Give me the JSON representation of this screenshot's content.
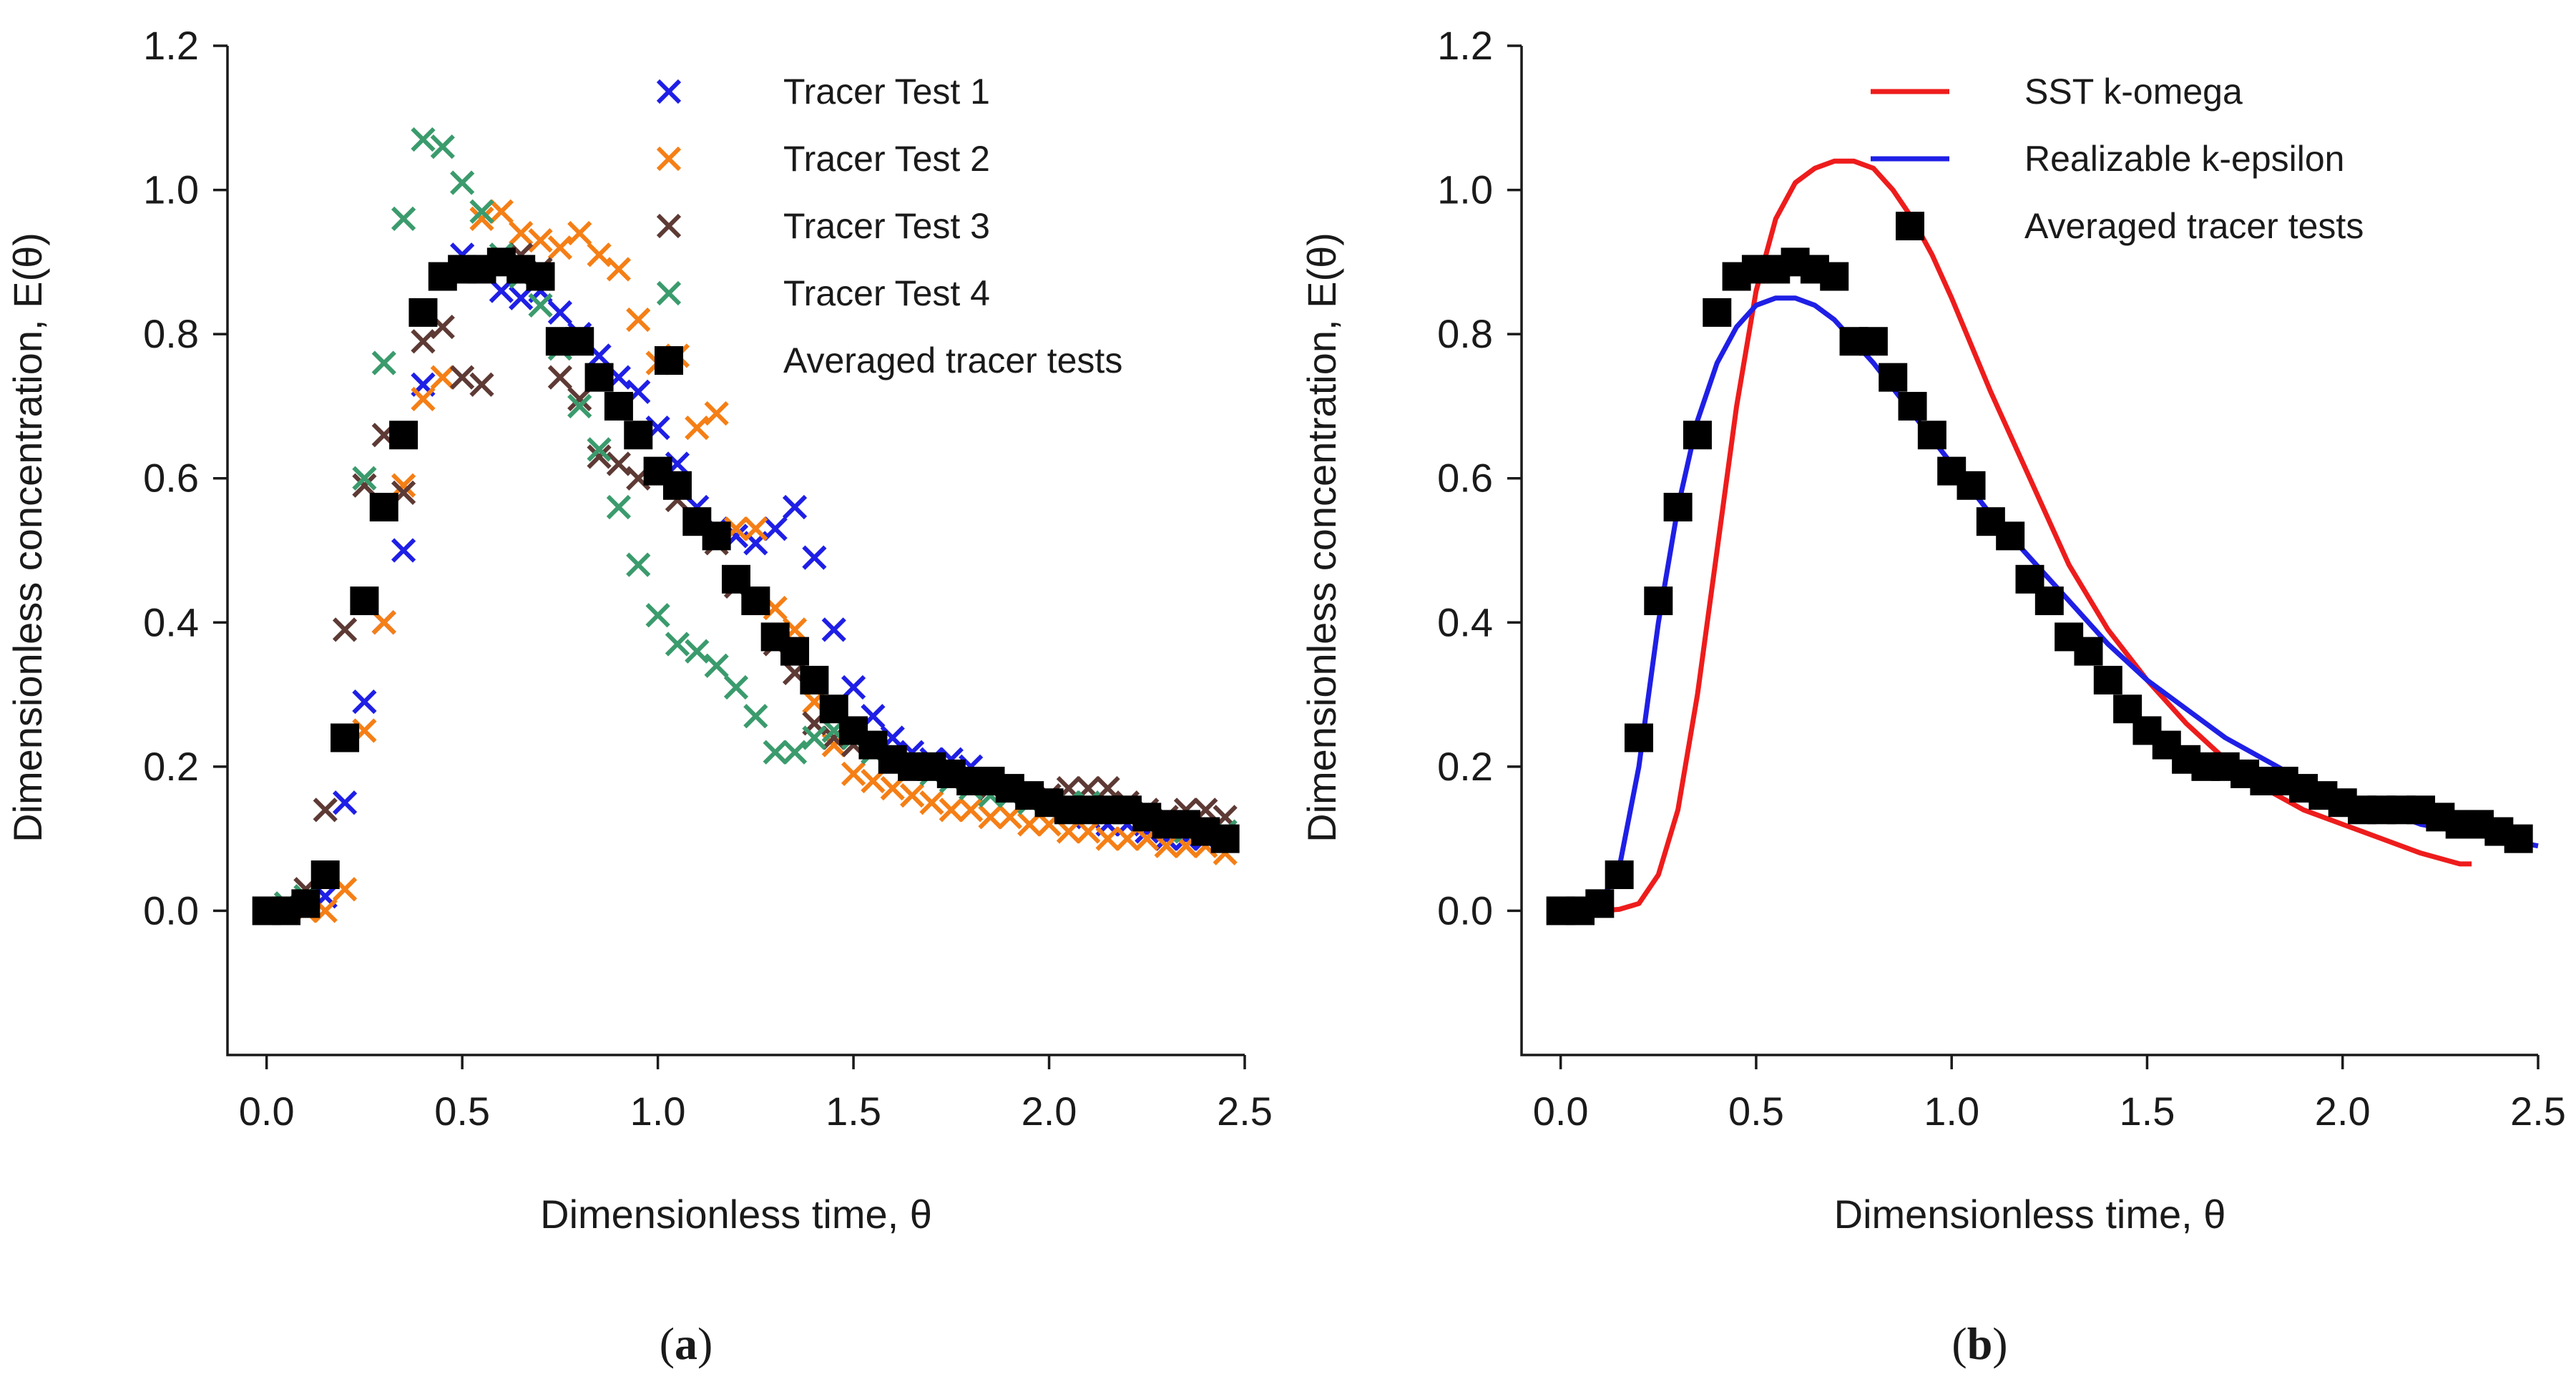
{
  "chart_data": [
    {
      "type": "scatter",
      "panel_label": "a",
      "xlabel": "Dimensionless time, θ",
      "ylabel": "Dimensionless concentration, E(θ)",
      "xlim": [
        -0.1,
        2.5
      ],
      "ylim": [
        -0.2,
        1.2
      ],
      "xticks": [
        "0.0",
        "0.5",
        "1.0",
        "1.5",
        "2.0",
        "2.5"
      ],
      "yticks": [
        "0.0",
        "0.2",
        "0.4",
        "0.6",
        "0.8",
        "1.0",
        "1.2"
      ],
      "grid": false,
      "legend": "top-right",
      "series": [
        {
          "name": "Tracer Test 1",
          "marker": "x",
          "color": "#1f1fe6",
          "x": [
            0.0,
            0.05,
            0.1,
            0.15,
            0.2,
            0.25,
            0.3,
            0.35,
            0.4,
            0.45,
            0.5,
            0.55,
            0.6,
            0.65,
            0.7,
            0.75,
            0.8,
            0.85,
            0.9,
            0.95,
            1.0,
            1.05,
            1.1,
            1.15,
            1.2,
            1.25,
            1.3,
            1.35,
            1.4,
            1.45,
            1.5,
            1.55,
            1.6,
            1.65,
            1.7,
            1.75,
            1.8,
            1.85,
            1.9,
            1.95,
            2.0,
            2.05,
            2.1,
            2.15,
            2.2,
            2.25,
            2.3,
            2.35,
            2.4,
            2.45
          ],
          "y": [
            0.0,
            0.0,
            0.01,
            0.02,
            0.15,
            0.29,
            0.4,
            0.5,
            0.73,
            0.88,
            0.91,
            0.89,
            0.86,
            0.85,
            0.86,
            0.83,
            0.8,
            0.77,
            0.74,
            0.72,
            0.67,
            0.62,
            0.56,
            0.53,
            0.52,
            0.51,
            0.53,
            0.56,
            0.49,
            0.39,
            0.31,
            0.27,
            0.24,
            0.22,
            0.21,
            0.21,
            0.2,
            0.18,
            0.17,
            0.16,
            0.15,
            0.14,
            0.13,
            0.12,
            0.12,
            0.11,
            0.1,
            0.1,
            0.1,
            0.1
          ]
        },
        {
          "name": "Tracer Test 2",
          "marker": "x",
          "color": "#f57f16",
          "x": [
            0.0,
            0.05,
            0.1,
            0.15,
            0.2,
            0.25,
            0.3,
            0.35,
            0.4,
            0.45,
            0.5,
            0.55,
            0.6,
            0.65,
            0.7,
            0.75,
            0.8,
            0.85,
            0.9,
            0.95,
            1.0,
            1.05,
            1.1,
            1.15,
            1.2,
            1.25,
            1.3,
            1.35,
            1.4,
            1.45,
            1.5,
            1.55,
            1.6,
            1.65,
            1.7,
            1.75,
            1.8,
            1.85,
            1.9,
            1.95,
            2.0,
            2.05,
            2.1,
            2.15,
            2.2,
            2.25,
            2.3,
            2.35,
            2.4,
            2.45
          ],
          "y": [
            0.0,
            0.0,
            0.0,
            0.0,
            0.03,
            0.25,
            0.4,
            0.59,
            0.71,
            0.74,
            0.89,
            0.96,
            0.97,
            0.94,
            0.93,
            0.92,
            0.94,
            0.91,
            0.89,
            0.82,
            0.76,
            0.77,
            0.67,
            0.69,
            0.53,
            0.53,
            0.42,
            0.39,
            0.29,
            0.23,
            0.19,
            0.18,
            0.17,
            0.16,
            0.15,
            0.14,
            0.14,
            0.13,
            0.13,
            0.12,
            0.12,
            0.11,
            0.11,
            0.1,
            0.1,
            0.1,
            0.09,
            0.09,
            0.09,
            0.08
          ]
        },
        {
          "name": "Tracer Test 3",
          "marker": "x",
          "color": "#5e3a35",
          "x": [
            0.0,
            0.05,
            0.1,
            0.15,
            0.2,
            0.25,
            0.3,
            0.35,
            0.4,
            0.45,
            0.5,
            0.55,
            0.6,
            0.65,
            0.7,
            0.75,
            0.8,
            0.85,
            0.9,
            0.95,
            1.0,
            1.05,
            1.1,
            1.15,
            1.2,
            1.25,
            1.3,
            1.35,
            1.4,
            1.45,
            1.5,
            1.55,
            1.6,
            1.65,
            1.7,
            1.75,
            1.8,
            1.85,
            1.9,
            1.95,
            2.0,
            2.05,
            2.1,
            2.15,
            2.2,
            2.25,
            2.3,
            2.35,
            2.4,
            2.45
          ],
          "y": [
            0.0,
            0.01,
            0.03,
            0.14,
            0.39,
            0.59,
            0.66,
            0.58,
            0.79,
            0.81,
            0.74,
            0.73,
            0.9,
            0.91,
            0.89,
            0.74,
            0.71,
            0.63,
            0.62,
            0.6,
            0.61,
            0.57,
            0.54,
            0.51,
            0.45,
            0.43,
            0.37,
            0.33,
            0.26,
            0.24,
            0.23,
            0.22,
            0.21,
            0.2,
            0.2,
            0.19,
            0.18,
            0.17,
            0.16,
            0.16,
            0.16,
            0.17,
            0.17,
            0.17,
            0.15,
            0.14,
            0.13,
            0.14,
            0.14,
            0.13
          ]
        },
        {
          "name": "Tracer Test 4",
          "marker": "x",
          "color": "#3b9b6d",
          "x": [
            0.0,
            0.05,
            0.1,
            0.15,
            0.2,
            0.25,
            0.3,
            0.35,
            0.4,
            0.45,
            0.5,
            0.55,
            0.6,
            0.65,
            0.7,
            0.75,
            0.8,
            0.85,
            0.9,
            0.95,
            1.0,
            1.05,
            1.1,
            1.15,
            1.2,
            1.25,
            1.3,
            1.35,
            1.4,
            1.45,
            1.5,
            1.55,
            1.6,
            1.65,
            1.7,
            1.75,
            1.8,
            1.85,
            1.9,
            1.95,
            2.0,
            2.05,
            2.1,
            2.15,
            2.2,
            2.25,
            2.3,
            2.35,
            2.4,
            2.45
          ],
          "y": [
            0.0,
            0.01,
            0.02,
            0.05,
            0.24,
            0.6,
            0.76,
            0.96,
            1.07,
            1.06,
            1.01,
            0.97,
            0.91,
            0.88,
            0.84,
            0.78,
            0.7,
            0.64,
            0.56,
            0.48,
            0.41,
            0.37,
            0.36,
            0.34,
            0.31,
            0.27,
            0.22,
            0.22,
            0.24,
            0.25,
            0.24,
            0.22,
            0.21,
            0.2,
            0.19,
            0.18,
            0.17,
            0.16,
            0.16,
            0.15,
            0.15,
            0.15,
            0.15,
            0.14,
            0.14,
            0.13,
            0.12,
            0.11,
            0.11,
            0.11
          ]
        },
        {
          "name": "Averaged tracer tests",
          "marker": "square",
          "color": "#000000",
          "x": [
            0.0,
            0.05,
            0.1,
            0.15,
            0.2,
            0.25,
            0.3,
            0.35,
            0.4,
            0.45,
            0.5,
            0.55,
            0.6,
            0.65,
            0.7,
            0.75,
            0.8,
            0.85,
            0.9,
            0.95,
            1.0,
            1.05,
            1.1,
            1.15,
            1.2,
            1.25,
            1.3,
            1.35,
            1.4,
            1.45,
            1.5,
            1.55,
            1.6,
            1.65,
            1.7,
            1.75,
            1.8,
            1.85,
            1.9,
            1.95,
            2.0,
            2.05,
            2.1,
            2.15,
            2.2,
            2.25,
            2.3,
            2.35,
            2.4,
            2.45
          ],
          "y": [
            0.0,
            0.0,
            0.01,
            0.05,
            0.24,
            0.43,
            0.56,
            0.66,
            0.83,
            0.88,
            0.89,
            0.89,
            0.9,
            0.89,
            0.88,
            0.79,
            0.79,
            0.74,
            0.7,
            0.66,
            0.61,
            0.59,
            0.54,
            0.52,
            0.46,
            0.43,
            0.38,
            0.36,
            0.32,
            0.28,
            0.25,
            0.23,
            0.21,
            0.2,
            0.2,
            0.19,
            0.18,
            0.18,
            0.17,
            0.16,
            0.15,
            0.14,
            0.14,
            0.14,
            0.14,
            0.13,
            0.12,
            0.12,
            0.11,
            0.1
          ]
        }
      ]
    },
    {
      "type": "line",
      "panel_label": "b",
      "xlabel": "Dimensionless time, θ",
      "ylabel": "Dimensionless concentration, E(θ)",
      "xlim": [
        -0.1,
        2.5
      ],
      "ylim": [
        -0.2,
        1.2
      ],
      "xticks": [
        "0.0",
        "0.5",
        "1.0",
        "1.5",
        "2.0",
        "2.5"
      ],
      "yticks": [
        "0.0",
        "0.2",
        "0.4",
        "0.6",
        "0.8",
        "1.0",
        "1.2"
      ],
      "grid": false,
      "legend": "top-right",
      "series": [
        {
          "name": "SST k-omega",
          "kind": "line",
          "color": "#ee1c1c",
          "x": [
            0.0,
            0.1,
            0.15,
            0.2,
            0.25,
            0.3,
            0.35,
            0.4,
            0.45,
            0.5,
            0.55,
            0.6,
            0.65,
            0.7,
            0.75,
            0.8,
            0.85,
            0.9,
            0.95,
            1.0,
            1.1,
            1.2,
            1.3,
            1.4,
            1.5,
            1.6,
            1.7,
            1.8,
            1.9,
            2.0,
            2.1,
            2.2,
            2.3,
            2.33
          ],
          "y": [
            0.0,
            0.0,
            0.002,
            0.01,
            0.05,
            0.14,
            0.3,
            0.5,
            0.7,
            0.86,
            0.96,
            1.01,
            1.03,
            1.04,
            1.04,
            1.03,
            1.0,
            0.96,
            0.91,
            0.85,
            0.72,
            0.6,
            0.48,
            0.39,
            0.32,
            0.26,
            0.21,
            0.17,
            0.14,
            0.12,
            0.1,
            0.08,
            0.065,
            0.065
          ]
        },
        {
          "name": "Realizable k-epsilon",
          "kind": "line",
          "color": "#1f1fe6",
          "x": [
            0.0,
            0.05,
            0.1,
            0.15,
            0.2,
            0.25,
            0.3,
            0.35,
            0.4,
            0.45,
            0.5,
            0.55,
            0.6,
            0.65,
            0.7,
            0.8,
            0.9,
            1.0,
            1.1,
            1.2,
            1.3,
            1.4,
            1.5,
            1.6,
            1.7,
            1.8,
            1.9,
            2.0,
            2.1,
            2.2,
            2.3,
            2.4,
            2.5
          ],
          "y": [
            0.0,
            0.001,
            0.01,
            0.06,
            0.2,
            0.4,
            0.56,
            0.68,
            0.76,
            0.81,
            0.84,
            0.85,
            0.85,
            0.84,
            0.82,
            0.76,
            0.69,
            0.62,
            0.55,
            0.49,
            0.43,
            0.37,
            0.32,
            0.28,
            0.24,
            0.21,
            0.18,
            0.16,
            0.14,
            0.12,
            0.11,
            0.1,
            0.09
          ]
        },
        {
          "name": "Averaged tracer tests",
          "kind": "square",
          "color": "#000000",
          "x": [
            0.0,
            0.05,
            0.1,
            0.15,
            0.2,
            0.25,
            0.3,
            0.35,
            0.4,
            0.45,
            0.5,
            0.55,
            0.6,
            0.65,
            0.7,
            0.75,
            0.8,
            0.85,
            0.9,
            0.95,
            1.0,
            1.05,
            1.1,
            1.15,
            1.2,
            1.25,
            1.3,
            1.35,
            1.4,
            1.45,
            1.5,
            1.55,
            1.6,
            1.65,
            1.7,
            1.75,
            1.8,
            1.85,
            1.9,
            1.95,
            2.0,
            2.05,
            2.1,
            2.15,
            2.2,
            2.25,
            2.3,
            2.35,
            2.4,
            2.45
          ],
          "y": [
            0.0,
            0.0,
            0.01,
            0.05,
            0.24,
            0.43,
            0.56,
            0.66,
            0.83,
            0.88,
            0.89,
            0.89,
            0.9,
            0.89,
            0.88,
            0.79,
            0.79,
            0.74,
            0.7,
            0.66,
            0.61,
            0.59,
            0.54,
            0.52,
            0.46,
            0.43,
            0.38,
            0.36,
            0.32,
            0.28,
            0.25,
            0.23,
            0.21,
            0.2,
            0.2,
            0.19,
            0.18,
            0.18,
            0.17,
            0.16,
            0.15,
            0.14,
            0.14,
            0.14,
            0.14,
            0.13,
            0.12,
            0.12,
            0.11,
            0.1
          ]
        }
      ]
    }
  ]
}
